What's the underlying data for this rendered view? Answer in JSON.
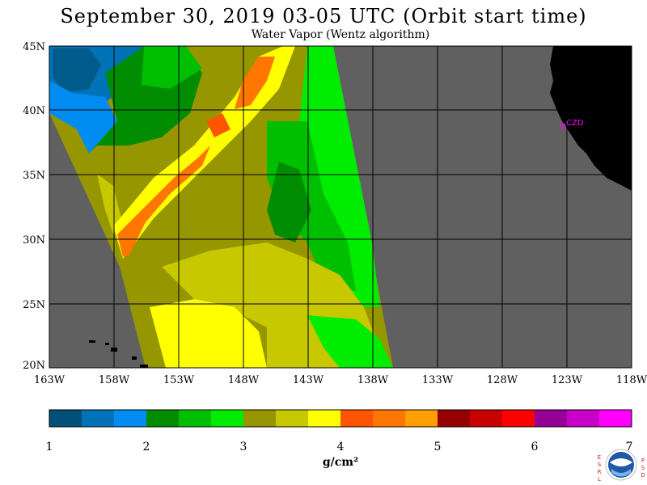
{
  "header": {
    "title": "September 30, 2019  03-05 UTC  (Orbit start time)",
    "subtitle": "Water Vapor (Wentz algorithm)"
  },
  "map": {
    "lat_labels": [
      "45N",
      "40N",
      "35N",
      "30N",
      "25N",
      "20N"
    ],
    "lon_labels": [
      "163W",
      "158W",
      "153W",
      "148W",
      "143W",
      "138W",
      "133W",
      "128W",
      "123W",
      "118W"
    ],
    "extent": {
      "lon_min": -163,
      "lon_max": -118,
      "lat_min": 20,
      "lat_max": 45
    },
    "station_label": "CZD",
    "colors": {
      "background": "#606060",
      "land": "#000000",
      "grid": "#000000",
      "station": "#ff00ff"
    }
  },
  "colorbar": {
    "ticks": [
      "1",
      "2",
      "3",
      "4",
      "5",
      "6",
      "7"
    ],
    "unit": "g/cm²",
    "colors": [
      "#00507a",
      "#0073b8",
      "#008cf0",
      "#008c00",
      "#00be00",
      "#00ec00",
      "#969600",
      "#c8c800",
      "#ffff00",
      "#ff5500",
      "#ff7700",
      "#ffa000",
      "#960000",
      "#c80000",
      "#ff0000",
      "#960096",
      "#c800c8",
      "#ff00ff"
    ]
  },
  "logo": {
    "left_letters": [
      "E",
      "S",
      "R",
      "L"
    ],
    "right_letters": [
      "P",
      "S",
      "D"
    ],
    "center_text": "NOAA"
  }
}
